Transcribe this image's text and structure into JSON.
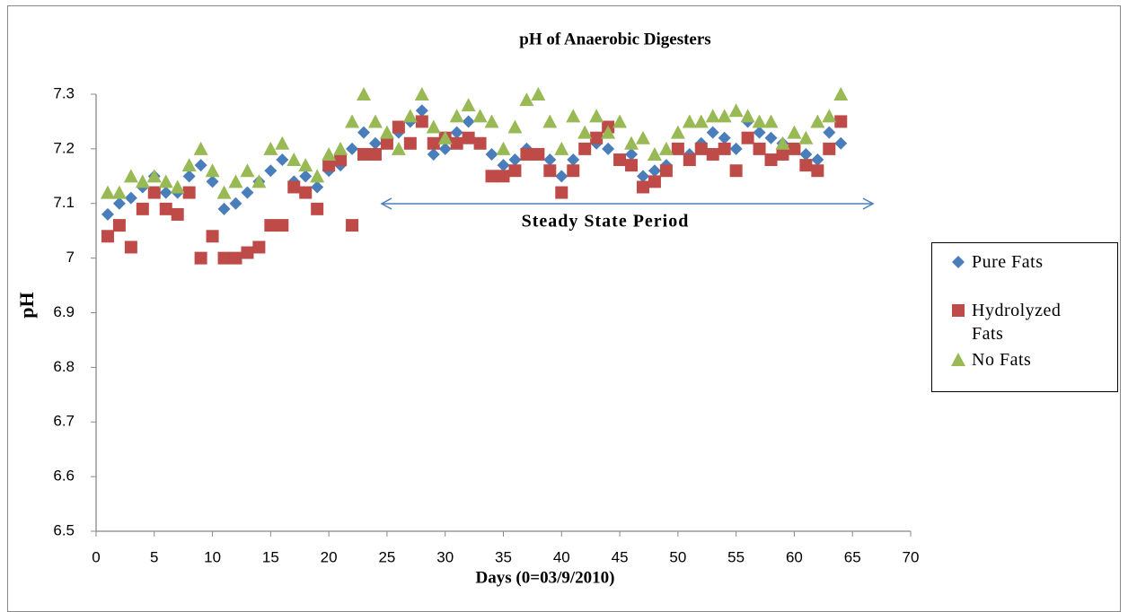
{
  "chart_data": {
    "type": "scatter",
    "title": "pH of Anaerobic Digesters",
    "x_label": "Days  (0=03/9/2010)",
    "y_label": "pH",
    "annotation": "Steady State Period",
    "xlim": [
      0,
      70
    ],
    "xticks": [
      0,
      5,
      10,
      15,
      20,
      25,
      30,
      35,
      40,
      45,
      50,
      55,
      60,
      65,
      70
    ],
    "ylim": [
      6.5,
      7.3
    ],
    "yticks": [
      6.5,
      6.6,
      6.7,
      6.8,
      6.9,
      7,
      7.1,
      7.2,
      7.3
    ],
    "grid": false,
    "legend": "right",
    "x": [
      1,
      2,
      3,
      4,
      5,
      6,
      7,
      8,
      9,
      10,
      11,
      12,
      13,
      14,
      15,
      16,
      17,
      18,
      19,
      20,
      21,
      22,
      23,
      24,
      25,
      26,
      27,
      28,
      29,
      30,
      31,
      32,
      33,
      34,
      35,
      36,
      37,
      38,
      39,
      40,
      41,
      42,
      43,
      44,
      45,
      46,
      47,
      48,
      49,
      50,
      51,
      52,
      53,
      54,
      55,
      56,
      57,
      58,
      59,
      60,
      61,
      62,
      63,
      64
    ],
    "series": [
      {
        "name": "Pure Fats",
        "color": "#4a7ebb",
        "marker": "diamond",
        "values": [
          7.08,
          7.1,
          7.11,
          7.13,
          7.15,
          7.12,
          7.12,
          7.15,
          7.17,
          7.14,
          7.09,
          7.1,
          7.12,
          7.14,
          7.16,
          7.18,
          7.14,
          7.15,
          7.13,
          7.16,
          7.17,
          7.2,
          7.23,
          7.21,
          7.21,
          7.23,
          7.25,
          7.27,
          7.19,
          7.2,
          7.23,
          7.25,
          7.21,
          7.19,
          7.17,
          7.18,
          7.2,
          7.19,
          7.18,
          7.15,
          7.18,
          7.2,
          7.21,
          7.2,
          7.18,
          7.19,
          7.15,
          7.16,
          7.17,
          7.2,
          7.19,
          7.21,
          7.23,
          7.22,
          7.2,
          7.25,
          7.23,
          7.22,
          7.21,
          7.2,
          7.19,
          7.18,
          7.23,
          7.21
        ]
      },
      {
        "name": "Hydrolyzed Fats",
        "color": "#be4b48",
        "marker": "square",
        "values": [
          7.04,
          7.06,
          7.02,
          7.09,
          7.12,
          7.09,
          7.08,
          7.12,
          7.0,
          7.04,
          7.0,
          7.0,
          7.01,
          7.02,
          7.06,
          7.06,
          7.13,
          7.12,
          7.09,
          7.17,
          7.18,
          7.06,
          7.19,
          7.19,
          7.21,
          7.24,
          7.21,
          7.25,
          7.21,
          7.22,
          7.21,
          7.22,
          7.21,
          7.15,
          7.15,
          7.16,
          7.19,
          7.19,
          7.16,
          7.12,
          7.16,
          7.2,
          7.22,
          7.24,
          7.18,
          7.17,
          7.13,
          7.14,
          7.16,
          7.2,
          7.18,
          7.2,
          7.19,
          7.2,
          7.16,
          7.22,
          7.2,
          7.18,
          7.19,
          7.2,
          7.17,
          7.16,
          7.2,
          7.25
        ]
      },
      {
        "name": "No Fats",
        "color": "#98b954",
        "marker": "triangle",
        "values": [
          7.12,
          7.12,
          7.15,
          7.14,
          7.15,
          7.14,
          7.13,
          7.17,
          7.2,
          7.16,
          7.12,
          7.14,
          7.16,
          7.14,
          7.2,
          7.21,
          7.18,
          7.17,
          7.15,
          7.19,
          7.2,
          7.25,
          7.3,
          7.25,
          7.23,
          7.2,
          7.26,
          7.3,
          7.24,
          7.22,
          7.26,
          7.28,
          7.26,
          7.25,
          7.2,
          7.24,
          7.29,
          7.3,
          7.25,
          7.2,
          7.26,
          7.23,
          7.26,
          7.23,
          7.25,
          7.21,
          7.22,
          7.19,
          7.2,
          7.23,
          7.25,
          7.25,
          7.26,
          7.26,
          7.27,
          7.26,
          7.25,
          7.25,
          7.21,
          7.23,
          7.22,
          7.25,
          7.26,
          7.3
        ]
      }
    ]
  }
}
